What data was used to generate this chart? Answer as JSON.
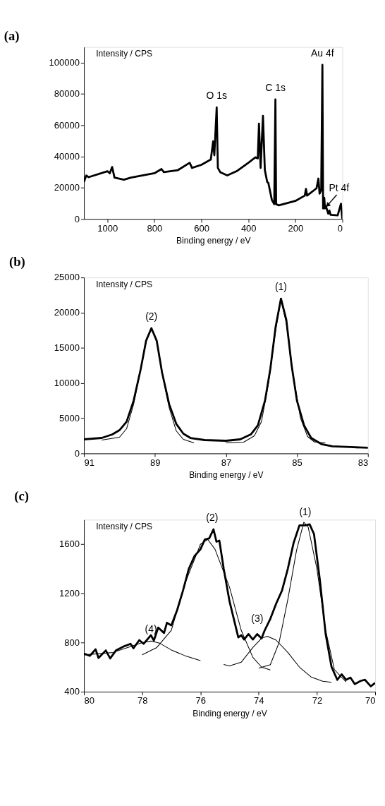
{
  "chart_data": [
    {
      "type": "line",
      "title": "(a)",
      "xlabel": "Binding energy / eV",
      "ylabel": "Intensity / CPS",
      "xlim": [
        1100,
        0
      ],
      "xticks": [
        1000,
        800,
        600,
        400,
        200,
        0
      ],
      "ylim": [
        0,
        110000
      ],
      "yticks": [
        0,
        20000,
        40000,
        60000,
        80000,
        100000
      ],
      "grid": false,
      "series": [
        {
          "color": "#000000",
          "x": [
            1100,
            1090,
            1080,
            1000,
            990,
            980,
            970,
            930,
            900,
            800,
            770,
            760,
            700,
            650,
            640,
            600,
            560,
            550,
            545,
            535,
            530,
            520,
            490,
            450,
            400,
            370,
            360,
            355,
            348,
            338,
            330,
            320,
            315,
            300,
            290,
            285,
            282,
            270,
            200,
            160,
            155,
            150,
            110,
            102,
            97,
            90,
            85,
            82,
            77,
            74,
            70,
            60,
            55,
            50,
            20,
            6,
            2,
            0
          ],
          "values": [
            23800,
            27900,
            26800,
            30600,
            29300,
            33300,
            26500,
            25200,
            26500,
            29300,
            32000,
            30000,
            31300,
            36000,
            32700,
            34700,
            38100,
            49700,
            40800,
            71400,
            32700,
            30000,
            27900,
            30600,
            36000,
            39500,
            38800,
            61000,
            32700,
            66000,
            31300,
            23800,
            23100,
            12200,
            9500,
            76500,
            9500,
            8800,
            11600,
            15000,
            19300,
            15000,
            19700,
            25900,
            16300,
            18400,
            98600,
            6800,
            13600,
            6800,
            8200,
            3400,
            5400,
            2700,
            2400,
            9800,
            2700,
            0
          ]
        }
      ],
      "annotations": [
        {
          "text": "O 1s",
          "x": 535,
          "y": 71400
        },
        {
          "text": "C 1s",
          "x": 285,
          "y": 76500
        },
        {
          "text": "Au 4f",
          "x": 85,
          "y": 98600
        },
        {
          "text": "Pt 4f",
          "x": 63,
          "y": 8800
        }
      ]
    },
    {
      "type": "line",
      "title": "(b)",
      "xlabel": "Binding energy / eV",
      "ylabel": "Intensity / CPS",
      "xlim": [
        91,
        83
      ],
      "xticks": [
        91,
        89,
        87,
        85,
        83
      ],
      "ylim": [
        0,
        25000
      ],
      "yticks": [
        0,
        5000,
        10000,
        15000,
        20000,
        25000
      ],
      "grid": false,
      "series": [
        {
          "color": "#000000",
          "x": [
            91,
            90.5,
            90.2,
            90.0,
            89.8,
            89.6,
            89.4,
            89.25,
            89.1,
            88.95,
            88.8,
            88.6,
            88.4,
            88.2,
            88.0,
            87.6,
            87.0,
            86.6,
            86.3,
            86.1,
            85.9,
            85.75,
            85.6,
            85.45,
            85.3,
            85.15,
            85.0,
            84.8,
            84.6,
            84.3,
            84.0,
            83.5,
            83.0
          ],
          "values": [
            2000,
            2200,
            2700,
            3300,
            4500,
            7500,
            12000,
            16000,
            17800,
            16000,
            11500,
            7000,
            4200,
            2800,
            2200,
            1900,
            1800,
            2000,
            2700,
            4000,
            7500,
            12000,
            18000,
            22000,
            19000,
            12500,
            7500,
            4000,
            2200,
            1300,
            1000,
            900,
            800
          ]
        },
        {
          "color": "#000000",
          "x": [
            90.5,
            90.0,
            89.8,
            89.6,
            89.4,
            89.25,
            89.1,
            88.95,
            88.8,
            88.6,
            88.4,
            88.2,
            87.9
          ],
          "values": [
            1900,
            2300,
            3500,
            7000,
            12000,
            16000,
            17700,
            16000,
            11500,
            6500,
            3200,
            2000,
            1500
          ]
        },
        {
          "color": "#000000",
          "x": [
            87.0,
            86.5,
            86.2,
            86.0,
            85.8,
            85.6,
            85.45,
            85.3,
            85.1,
            84.9,
            84.7,
            84.5,
            84.2
          ],
          "values": [
            1500,
            1600,
            2500,
            4500,
            10000,
            17500,
            21800,
            18500,
            11000,
            5000,
            2400,
            1600,
            1500
          ]
        }
      ],
      "annotations": [
        {
          "text": "(2)",
          "x": 89.1,
          "y": 17800
        },
        {
          "text": "(1)",
          "x": 85.45,
          "y": 22000
        }
      ]
    },
    {
      "type": "line",
      "title": "(c)",
      "xlabel": "Binding energy / eV",
      "ylabel": "Intensity / CPS",
      "xlim": [
        80,
        70
      ],
      "xticks": [
        80,
        78,
        76,
        74,
        72,
        70
      ],
      "ylim": [
        400,
        1800
      ],
      "yticks": [
        400,
        800,
        1200,
        1600
      ],
      "grid": false,
      "series": [
        {
          "color": "#000000",
          "x": [
            80.0,
            79.8,
            79.6,
            79.5,
            79.25,
            79.1,
            78.9,
            78.6,
            78.4,
            78.3,
            78.1,
            77.95,
            77.7,
            77.6,
            77.45,
            77.25,
            77.15,
            77.0,
            76.8,
            76.6,
            76.4,
            76.2,
            76.0,
            75.85,
            75.7,
            75.55,
            75.45,
            75.35,
            75.2,
            75.0,
            74.8,
            74.7,
            74.6,
            74.5,
            74.35,
            74.2,
            74.05,
            73.9,
            73.8,
            73.6,
            73.4,
            73.2,
            73.0,
            72.8,
            72.6,
            72.4,
            72.25,
            72.1,
            71.9,
            71.7,
            71.5,
            71.3,
            71.15,
            71.0,
            70.85,
            70.7,
            70.5,
            70.35,
            70.15,
            70.0
          ],
          "values": [
            710,
            692,
            745,
            675,
            736,
            671,
            736,
            772,
            790,
            754,
            820,
            790,
            860,
            816,
            922,
            878,
            961,
            940,
            1064,
            1223,
            1400,
            1506,
            1559,
            1639,
            1648,
            1722,
            1621,
            1630,
            1400,
            1135,
            940,
            842,
            860,
            825,
            869,
            825,
            869,
            834,
            896,
            993,
            1117,
            1223,
            1400,
            1612,
            1754,
            1754,
            1763,
            1683,
            1312,
            869,
            604,
            497,
            542,
            497,
            515,
            462,
            488,
            497,
            444,
            471
          ]
        },
        {
          "color": "#000000",
          "x": [
            80.0,
            79.0,
            78.5,
            78.0,
            77.7,
            77.4,
            77.0,
            76.5,
            76.0
          ],
          "values": [
            700,
            720,
            760,
            800,
            812,
            795,
            740,
            690,
            653
          ]
        },
        {
          "color": "#000000",
          "x": [
            78.0,
            77.5,
            77.0,
            76.5,
            76.0,
            75.75,
            75.5,
            75.0,
            74.6,
            74.2,
            73.9,
            73.6
          ],
          "values": [
            701,
            760,
            900,
            1300,
            1600,
            1640,
            1560,
            1250,
            900,
            680,
            600,
            577
          ]
        },
        {
          "color": "#000000",
          "x": [
            75.2,
            75.0,
            74.6,
            74.2,
            73.9,
            73.7,
            73.4,
            73.0,
            72.6,
            72.2,
            71.8,
            71.5
          ],
          "values": [
            621,
            610,
            640,
            760,
            835,
            851,
            820,
            720,
            600,
            520,
            485,
            476
          ]
        },
        {
          "color": "#000000",
          "x": [
            74.0,
            73.6,
            73.3,
            73.0,
            72.7,
            72.45,
            72.3,
            72.0,
            71.7,
            71.4,
            71.0
          ],
          "values": [
            591,
            620,
            800,
            1150,
            1550,
            1780,
            1740,
            1400,
            900,
            580,
            480
          ]
        }
      ],
      "annotations": [
        {
          "text": "(1)",
          "x": 72.4,
          "y": 1770
        },
        {
          "text": "(2)",
          "x": 75.6,
          "y": 1720
        },
        {
          "text": "(3)",
          "x": 74.05,
          "y": 900
        },
        {
          "text": "(4)",
          "x": 77.7,
          "y": 812
        }
      ]
    }
  ]
}
